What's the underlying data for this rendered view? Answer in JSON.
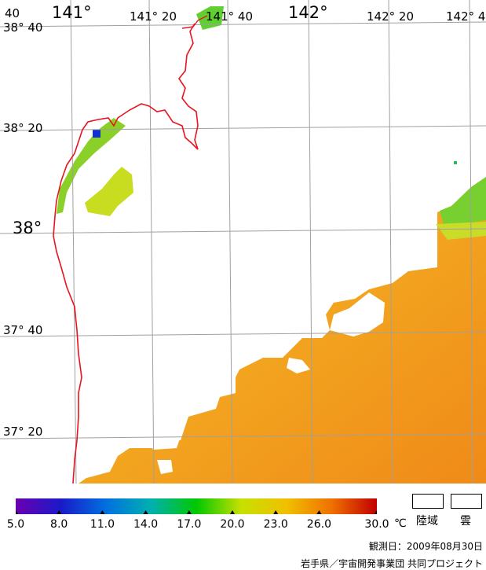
{
  "map": {
    "lon_labels": [
      {
        "text": "40",
        "size": "small"
      },
      {
        "text": "141°",
        "size": "big"
      },
      {
        "text": "141° 20",
        "size": "small"
      },
      {
        "text": "141° 40",
        "size": "small"
      },
      {
        "text": "142°",
        "size": "big"
      },
      {
        "text": "142° 20",
        "size": "small"
      },
      {
        "text": "142° 4",
        "size": "small"
      }
    ],
    "lat_labels": [
      {
        "text": "38° 40",
        "size": "small"
      },
      {
        "text": "38° 20",
        "size": "small"
      },
      {
        "text": "38°",
        "size": "big"
      },
      {
        "text": "37° 40",
        "size": "small"
      },
      {
        "text": "37° 20",
        "size": "small"
      }
    ],
    "colors": {
      "coastline": "#e8141e",
      "grid": "#a0a0a0",
      "sea_warm": "#f2a020",
      "sea_mid": "#e8c820",
      "sea_cool": "#60d030"
    }
  },
  "colorbar": {
    "min": 5.0,
    "max": 30.0,
    "tick_labels": [
      "5.0",
      "8.0",
      "11.0",
      "14.0",
      "17.0",
      "20.0",
      "23.0",
      "26.0",
      "30.0"
    ],
    "unit": "℃",
    "colors": [
      "#6a00b0",
      "#1a1ac8",
      "#0070e0",
      "#00b0b0",
      "#00c800",
      "#c8e000",
      "#f0c000",
      "#f07000",
      "#c00000"
    ]
  },
  "legend": {
    "land_label": "陸域",
    "cloud_label": "雲"
  },
  "footer": {
    "observation_date": "観測日：2009年08月30日",
    "credit": "岩手県／宇宙開発事業団  共同プロジェクト"
  }
}
